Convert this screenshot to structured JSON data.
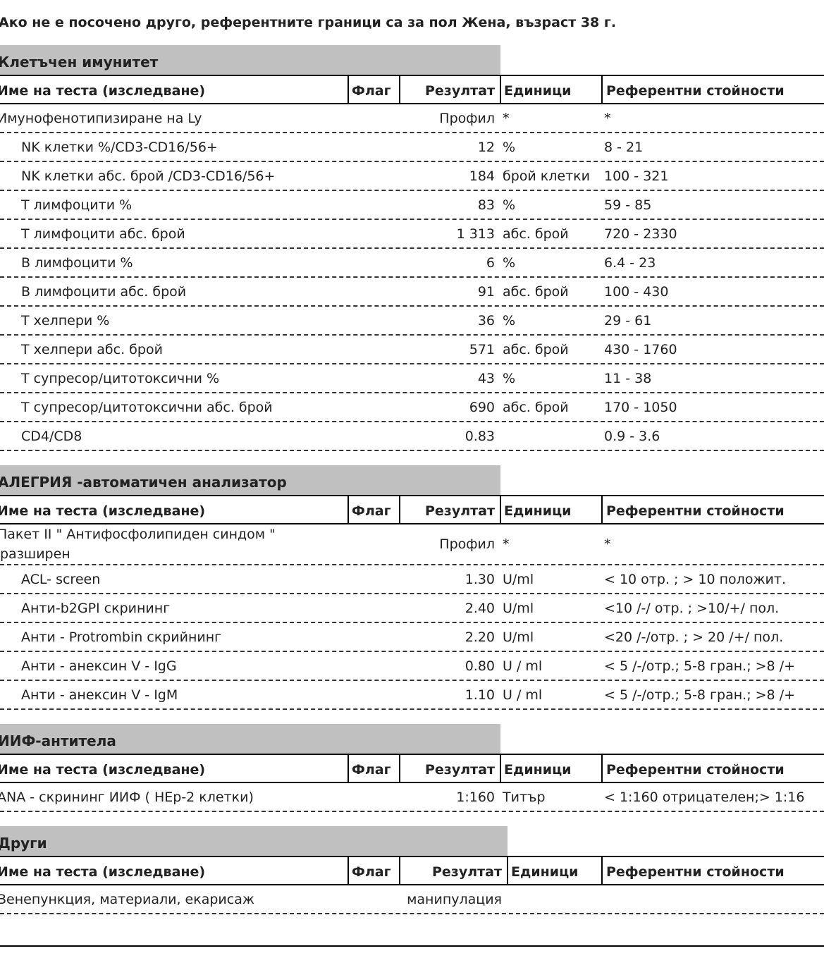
{
  "note": "Ако не е посочено друго, референтните граници са за пол Жена, възраст 38 г.",
  "sections": [
    {
      "title": "Клетъчен имунитет",
      "header": [
        "Име на теста (изследване)",
        "Флаг",
        "Резултат",
        "Единици",
        "Референтни стойности"
      ],
      "rows": [
        {
          "name": "Имунофенотипизиране на Ly",
          "result": "Профил",
          "units": "*",
          "ref": "*",
          "subtests": [
            {
              "name": "NK клетки %/CD3-CD16/56+",
              "result": "12",
              "units": "%",
              "ref": "8 - 21"
            },
            {
              "name": "NK клетки абс. брой /CD3-CD16/56+",
              "result": "184",
              "units": "брой клетки",
              "ref": "100 - 321"
            },
            {
              "name": "T лимфоцити %",
              "result": "83",
              "units": "%",
              "ref": "59 - 85"
            },
            {
              "name": "T лимфоцити абс. брой",
              "result": "1 313",
              "units": "абс. брой",
              "ref": "720 - 2330"
            },
            {
              "name": "B лимфоцити %",
              "result": "6",
              "units": "%",
              "ref": "6.4 - 23"
            },
            {
              "name": "B лимфоцити абс. брой",
              "result": "91",
              "units": "абс. брой",
              "ref": "100 - 430"
            },
            {
              "name": "T хелпери %",
              "result": "36",
              "units": "%",
              "ref": "29 - 61"
            },
            {
              "name": "T хелпери абс. брой",
              "result": "571",
              "units": "абс. брой",
              "ref": "430 - 1760"
            },
            {
              "name": "T супресор/цитотоксични %",
              "result": "43",
              "units": "%",
              "ref": "11 - 38"
            },
            {
              "name": "T супресор/цитотоксични абс. брой",
              "result": "690",
              "units": "абс. брой",
              "ref": "170 - 1050"
            },
            {
              "name": "CD4/CD8",
              "result": "0.83",
              "ref": "0.9 - 3.6"
            }
          ]
        }
      ]
    },
    {
      "title": "АЛЕГРИЯ -автоматичен анализатор",
      "header": [
        "Име на теста (изследване)",
        "Флаг",
        "Резултат",
        "Единици",
        "Референтни стойности"
      ],
      "rows": [
        {
          "name": "Пакет II \" Антифосфолипиден синдом \" разширен",
          "result": "Профил",
          "units": "*",
          "ref": "*",
          "subtests": [
            {
              "name": "ACL- screen",
              "result": "1.30",
              "units": "U/ml",
              "ref": "< 10 отр. ; > 10 положит."
            },
            {
              "name": "Анти-b2GPI скрининг",
              "result": "2.40",
              "units": "U/ml",
              "ref": "<10 /-/ отр. ; >10/+/ пол."
            },
            {
              "name": "Анти - Protrombin скрийнинг",
              "result": "2.20",
              "units": "U/ml",
              "ref": "<20 /-/отр. ; > 20 /+/ пол."
            },
            {
              "name": "Анти - анексин V - IgG",
              "result": "0.80",
              "units": "U / ml",
              "ref": "< 5 /-/отр.; 5-8 гран.; >8 /+"
            },
            {
              "name": "Анти - анексин V - IgM",
              "result": "1.10",
              "units": "U / ml",
              "ref": "< 5 /-/отр.; 5-8 гран.; >8 /+"
            }
          ]
        }
      ]
    },
    {
      "title": "ИИФ-антитела",
      "header": [
        "Име на теста (изследване)",
        "Флаг",
        "Резултат",
        "Единици",
        "Референтни стойности"
      ],
      "rows": [
        {
          "name": "ANA - скрининг ИИФ ( HEp-2 клетки)",
          "result": "1:160",
          "units": "Титър",
          "ref": "< 1:160 отрицателен;> 1:16"
        }
      ]
    },
    {
      "title": "Други",
      "header": [
        "Име на теста (изследване)",
        "Флаг",
        "Резултат",
        "Единици",
        "Референтни стойности"
      ],
      "rows": [
        {
          "name": "Венепункция, материали, екарисаж",
          "result": "манипулация"
        }
      ]
    }
  ]
}
